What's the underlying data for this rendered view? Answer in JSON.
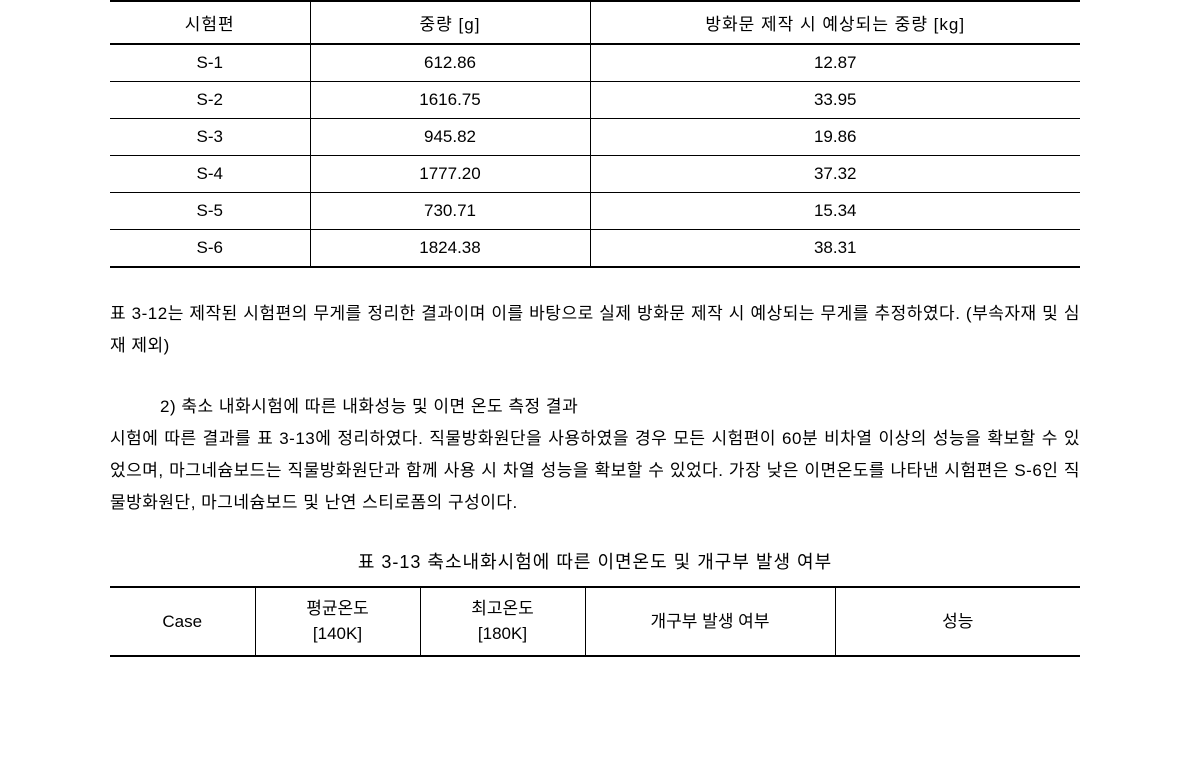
{
  "table1": {
    "headers": [
      "시험편",
      "중량 [g]",
      "방화문 제작 시 예상되는 중량 [kg]"
    ],
    "rows": [
      [
        "S-1",
        "612.86",
        "12.87"
      ],
      [
        "S-2",
        "1616.75",
        "33.95"
      ],
      [
        "S-3",
        "945.82",
        "19.86"
      ],
      [
        "S-4",
        "1777.20",
        "37.32"
      ],
      [
        "S-5",
        "730.71",
        "15.34"
      ],
      [
        "S-6",
        "1824.38",
        "38.31"
      ]
    ]
  },
  "paragraph1": "표 3-12는 제작된 시험편의 무게를 정리한 결과이며 이를 바탕으로 실제 방화문 제작 시 예상되는 무게를 추정하였다. (부속자재 및 심재 제외)",
  "subheading": "2) 축소 내화시험에 따른 내화성능 및 이면 온도 측정 결과",
  "paragraph2": "시험에 따른 결과를 표 3-13에 정리하였다. 직물방화원단을 사용하였을 경우 모든 시험편이 60분 비차열 이상의 성능을 확보할 수 있었으며, 마그네슘보드는 직물방화원단과 함께 사용 시 차열 성능을 확보할 수 있었다. 가장 낮은 이면온도를 나타낸 시험편은 S-6인 직물방화원단, 마그네슘보드 및 난연 스티로폼의 구성이다.",
  "table2_caption": "표 3-13 축소내화시험에 따른 이면온도 및 개구부 발생 여부",
  "table2": {
    "headers": [
      {
        "line1": "Case",
        "line2": ""
      },
      {
        "line1": "평균온도",
        "line2": "[140K]"
      },
      {
        "line1": "최고온도",
        "line2": "[180K]"
      },
      {
        "line1": "개구부 발생 여부",
        "line2": ""
      },
      {
        "line1": "성능",
        "line2": ""
      }
    ]
  }
}
